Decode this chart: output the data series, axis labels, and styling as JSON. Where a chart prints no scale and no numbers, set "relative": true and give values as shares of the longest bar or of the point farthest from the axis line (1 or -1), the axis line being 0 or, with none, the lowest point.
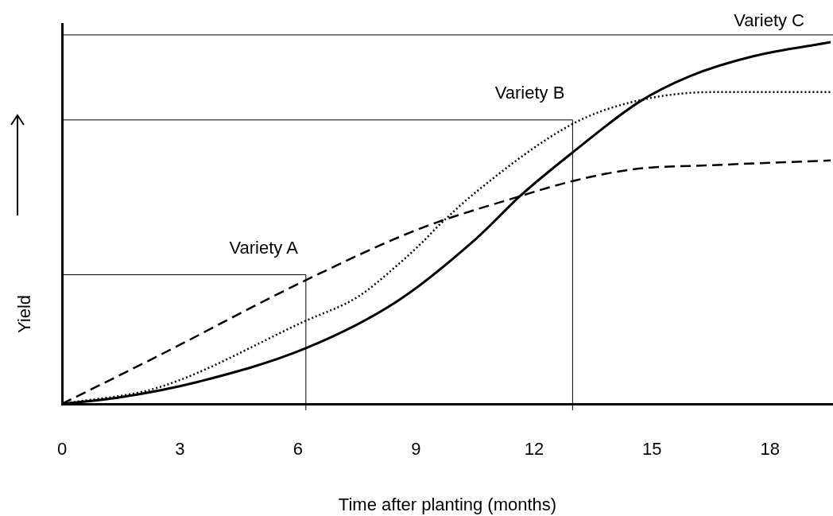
{
  "chart_data": {
    "type": "line",
    "relative": true,
    "xlabel": "Time after planting (months)",
    "ylabel": "Yield",
    "xlim": [
      0,
      19.6
    ],
    "xticks": [
      0,
      3,
      6,
      9,
      12,
      15,
      18
    ],
    "grid": false,
    "legend": false,
    "tick_labels": "x",
    "marker": "none",
    "series": [
      {
        "color": "#000000",
        "line_style": "dashed",
        "x": [
          0,
          2.47,
          6.2,
          9.11,
          11.52,
          12.98,
          14.55,
          16.56,
          19.54
        ],
        "values": [
          0,
          0.134,
          0.342,
          0.485,
          0.57,
          0.616,
          0.649,
          0.66,
          0.673
        ]
      },
      {
        "color": "#000000",
        "line_style": "dotted",
        "x": [
          0,
          2.47,
          6.2,
          7.52,
          8.53,
          9.19,
          9.54,
          10.55,
          12.98,
          14.55,
          16.56,
          19.54
        ],
        "values": [
          0,
          0.046,
          0.23,
          0.296,
          0.384,
          0.45,
          0.489,
          0.588,
          0.774,
          0.836,
          0.862,
          0.862
        ]
      },
      {
        "color": "#000000",
        "line_style": "solid",
        "x": [
          0,
          1.47,
          3.46,
          6.2,
          8.51,
          10.52,
          11.67,
          12.98,
          14.69,
          15.96,
          17.57,
          19.54
        ],
        "values": [
          0,
          0.018,
          0.061,
          0.154,
          0.283,
          0.456,
          0.577,
          0.695,
          0.836,
          0.906,
          0.961,
          1
        ]
      }
    ],
    "ref_lines": [
      {
        "axis": "y",
        "value": 0.357,
        "label": "Variety A"
      },
      {
        "axis": "y",
        "value": 0.785,
        "label": "Variety B"
      },
      {
        "axis": "y",
        "value": 1.02,
        "label": "Variety C"
      },
      {
        "axis": "x",
        "value": 6.2,
        "label": null
      },
      {
        "axis": "x",
        "value": 12.98,
        "label": null
      }
    ]
  }
}
